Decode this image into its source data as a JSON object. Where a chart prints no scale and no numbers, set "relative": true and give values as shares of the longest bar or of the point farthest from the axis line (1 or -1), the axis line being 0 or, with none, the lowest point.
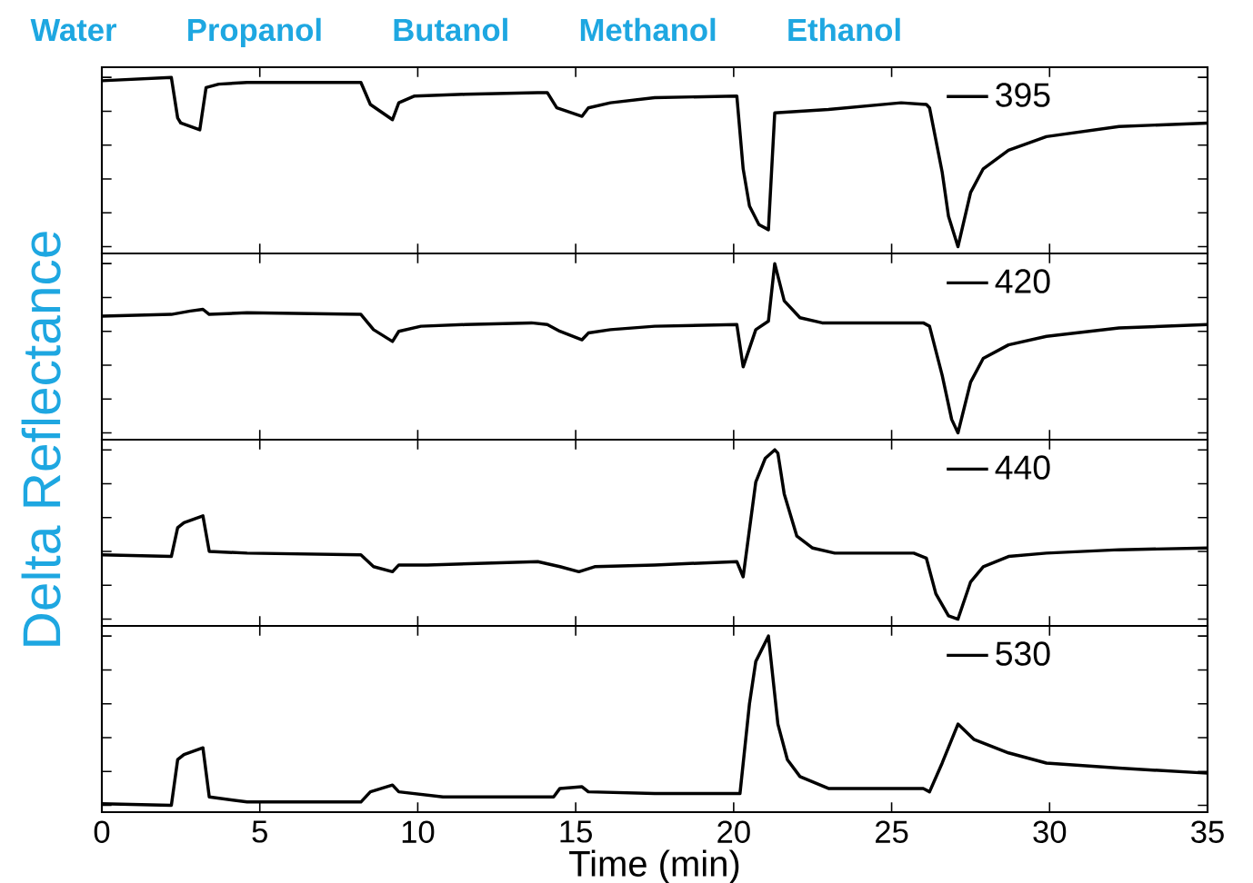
{
  "chart_data": [
    {
      "type": "line",
      "relative": true,
      "ylabel": "Delta Reflectance",
      "legend": "top right",
      "tick_labels": false,
      "xlim": [
        0,
        35
      ],
      "xticks": [
        0,
        5,
        10,
        15,
        20,
        25,
        30,
        35
      ],
      "annotations": [
        "Water",
        "Propanol",
        "Butanol",
        "Methanol",
        "Ethanol"
      ],
      "series": [
        {
          "name": "395",
          "color": "#000000",
          "x": [
            0,
            2.2,
            2.4,
            2.5,
            3.1,
            3.3,
            3.7,
            4.6,
            8.2,
            8.5,
            9.2,
            9.4,
            9.9,
            11.5,
            13.8,
            14.1,
            14.4,
            15.2,
            15.4,
            16.1,
            17.5,
            20.1,
            20.3,
            20.5,
            20.8,
            21.1,
            21.3,
            23.0,
            25.3,
            26.1,
            26.2,
            26.6,
            26.8,
            27.1,
            27.5,
            27.9,
            28.7,
            29.9,
            32.2,
            35.0
          ],
          "values": [
            0.98,
            1,
            0.76,
            0.73,
            0.69,
            0.94,
            0.96,
            0.97,
            0.97,
            0.84,
            0.75,
            0.85,
            0.89,
            0.9,
            0.91,
            0.91,
            0.82,
            0.77,
            0.82,
            0.85,
            0.88,
            0.89,
            0.46,
            0.24,
            0.13,
            0.1,
            0.79,
            0.81,
            0.85,
            0.84,
            0.82,
            0.44,
            0.18,
            0,
            0.32,
            0.46,
            0.57,
            0.65,
            0.71,
            0.73
          ]
        }
      ]
    },
    {
      "type": "line",
      "relative": true,
      "legend": "top right",
      "tick_labels": false,
      "xlim": [
        0,
        35
      ],
      "xticks": [
        0,
        5,
        10,
        15,
        20,
        25,
        30,
        35
      ],
      "series": [
        {
          "name": "420",
          "color": "#000000",
          "x": [
            0,
            2.2,
            2.8,
            3.2,
            3.4,
            4.6,
            8.2,
            8.6,
            9.2,
            9.4,
            10.1,
            11.5,
            13.6,
            14.1,
            14.5,
            15.2,
            15.4,
            16.1,
            17.5,
            20.1,
            20.3,
            20.7,
            21.1,
            21.3,
            21.6,
            22.1,
            22.8,
            24.1,
            26.0,
            26.2,
            26.6,
            26.9,
            27.1,
            27.5,
            27.9,
            28.7,
            29.9,
            32.2,
            35.0
          ],
          "values": [
            0.69,
            0.7,
            0.72,
            0.73,
            0.7,
            0.71,
            0.7,
            0.61,
            0.54,
            0.6,
            0.63,
            0.64,
            0.65,
            0.64,
            0.6,
            0.55,
            0.59,
            0.61,
            0.63,
            0.64,
            0.39,
            0.61,
            0.66,
            1,
            0.78,
            0.68,
            0.65,
            0.65,
            0.65,
            0.63,
            0.34,
            0.08,
            0,
            0.3,
            0.44,
            0.52,
            0.57,
            0.62,
            0.64
          ]
        }
      ]
    },
    {
      "type": "line",
      "relative": true,
      "legend": "top right",
      "tick_labels": false,
      "xlim": [
        0,
        35
      ],
      "xticks": [
        0,
        5,
        10,
        15,
        20,
        25,
        30,
        35
      ],
      "series": [
        {
          "name": "440",
          "color": "#000000",
          "x": [
            0,
            2.2,
            2.4,
            2.6,
            3.2,
            3.4,
            4.6,
            8.2,
            8.6,
            9.2,
            9.4,
            10.3,
            13.8,
            14.5,
            15.1,
            15.6,
            17.5,
            20.1,
            20.3,
            20.7,
            21.0,
            21.3,
            21.4,
            21.6,
            22.0,
            22.5,
            23.2,
            25.7,
            26.1,
            26.4,
            26.8,
            27.1,
            27.5,
            27.9,
            28.7,
            29.9,
            32.2,
            35.0
          ],
          "values": [
            0.38,
            0.37,
            0.54,
            0.57,
            0.61,
            0.4,
            0.39,
            0.38,
            0.31,
            0.28,
            0.32,
            0.32,
            0.34,
            0.31,
            0.28,
            0.31,
            0.32,
            0.34,
            0.25,
            0.81,
            0.95,
            1,
            0.98,
            0.74,
            0.49,
            0.42,
            0.39,
            0.39,
            0.36,
            0.15,
            0.02,
            0,
            0.22,
            0.31,
            0.37,
            0.39,
            0.41,
            0.42
          ]
        }
      ]
    },
    {
      "type": "line",
      "relative": true,
      "legend": "top right",
      "tick_labels": "x",
      "xlabel": "Time (min)",
      "xlim": [
        0,
        35
      ],
      "xticks": [
        0,
        5,
        10,
        15,
        20,
        25,
        30,
        35
      ],
      "series": [
        {
          "name": "530",
          "color": "#000000",
          "x": [
            0,
            2.2,
            2.4,
            2.6,
            3.2,
            3.4,
            4.6,
            8.2,
            8.5,
            9.2,
            9.4,
            10.8,
            14.3,
            14.5,
            15.2,
            15.4,
            17.5,
            20.2,
            20.5,
            20.7,
            21.1,
            21.4,
            21.7,
            22.1,
            23.0,
            26.0,
            26.2,
            26.6,
            27.1,
            27.6,
            28.7,
            29.9,
            32.2,
            35.0
          ],
          "values": [
            0.01,
            0,
            0.27,
            0.3,
            0.34,
            0.05,
            0.02,
            0.02,
            0.08,
            0.12,
            0.08,
            0.05,
            0.05,
            0.1,
            0.11,
            0.08,
            0.07,
            0.07,
            0.6,
            0.85,
            1,
            0.48,
            0.27,
            0.17,
            0.1,
            0.1,
            0.08,
            0.25,
            0.48,
            0.39,
            0.31,
            0.25,
            0.22,
            0.19
          ]
        }
      ]
    }
  ]
}
